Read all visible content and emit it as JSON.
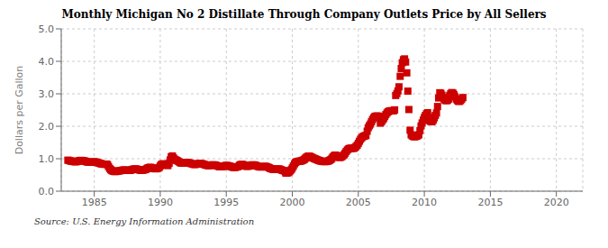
{
  "chart_data": {
    "type": "scatter",
    "title": "Monthly Michigan No 2 Distillate Through Company Outlets Price by All Sellers",
    "ylabel": "Dollars per Gallon",
    "annotations": [
      "Source: U.S. Energy Information Administration"
    ],
    "color": "#cc0000",
    "marker": "square",
    "grid": true,
    "xlim": [
      1982.5,
      2022
    ],
    "ylim": [
      0.0,
      5.0
    ],
    "xticks": [
      1985,
      1990,
      1995,
      2000,
      2005,
      2010,
      2015,
      2020
    ],
    "yticks": [
      {
        "value": 0.0,
        "label": "0.0"
      },
      {
        "value": 1.0,
        "label": "1.0"
      },
      {
        "value": 2.0,
        "label": "2.0"
      },
      {
        "value": 3.0,
        "label": "3.0"
      },
      {
        "value": 4.0,
        "label": "4.0"
      },
      {
        "value": 5.0,
        "label": "5.0"
      }
    ],
    "x": [
      1983.0,
      1983.08,
      1983.17,
      1983.25,
      1983.33,
      1983.42,
      1983.5,
      1983.58,
      1983.67,
      1983.75,
      1983.83,
      1983.92,
      1984.0,
      1984.08,
      1984.17,
      1984.25,
      1984.33,
      1984.42,
      1984.5,
      1984.58,
      1984.67,
      1984.75,
      1984.83,
      1984.92,
      1985.0,
      1985.08,
      1985.17,
      1985.25,
      1985.33,
      1985.42,
      1985.5,
      1985.58,
      1985.67,
      1985.75,
      1985.83,
      1985.92,
      1986.0,
      1986.08,
      1986.17,
      1986.25,
      1986.33,
      1986.42,
      1986.5,
      1986.58,
      1986.67,
      1986.75,
      1986.83,
      1986.92,
      1987.0,
      1987.08,
      1987.17,
      1987.25,
      1987.33,
      1987.42,
      1987.5,
      1987.58,
      1987.67,
      1987.75,
      1987.83,
      1987.92,
      1988.0,
      1988.08,
      1988.17,
      1988.25,
      1988.33,
      1988.42,
      1988.5,
      1988.58,
      1988.67,
      1988.75,
      1988.83,
      1988.92,
      1989.0,
      1989.08,
      1989.17,
      1989.25,
      1989.33,
      1989.42,
      1989.5,
      1989.58,
      1989.67,
      1989.75,
      1989.83,
      1989.92,
      1990.0,
      1990.08,
      1990.17,
      1990.25,
      1990.33,
      1990.42,
      1990.5,
      1990.58,
      1990.67,
      1990.75,
      1990.83,
      1990.92,
      1991.0,
      1991.08,
      1991.17,
      1991.25,
      1991.33,
      1991.42,
      1991.5,
      1991.58,
      1991.67,
      1991.75,
      1991.83,
      1991.92,
      1992.0,
      1992.08,
      1992.17,
      1992.25,
      1992.33,
      1992.42,
      1992.5,
      1992.58,
      1992.67,
      1992.75,
      1992.83,
      1992.92,
      1993.0,
      1993.08,
      1993.17,
      1993.25,
      1993.33,
      1993.42,
      1993.5,
      1993.58,
      1993.67,
      1993.75,
      1993.83,
      1993.92,
      1994.0,
      1994.08,
      1994.17,
      1994.25,
      1994.33,
      1994.42,
      1994.5,
      1994.58,
      1994.67,
      1994.75,
      1994.83,
      1994.92,
      1995.0,
      1995.08,
      1995.17,
      1995.25,
      1995.33,
      1995.42,
      1995.5,
      1995.58,
      1995.67,
      1995.75,
      1995.83,
      1995.92,
      1996.0,
      1996.08,
      1996.17,
      1996.25,
      1996.33,
      1996.42,
      1996.5,
      1996.58,
      1996.67,
      1996.75,
      1996.83,
      1996.92,
      1997.0,
      1997.08,
      1997.17,
      1997.25,
      1997.33,
      1997.42,
      1997.5,
      1997.58,
      1997.67,
      1997.75,
      1997.83,
      1997.92,
      1998.0,
      1998.08,
      1998.17,
      1998.25,
      1998.33,
      1998.42,
      1998.5,
      1998.58,
      1998.67,
      1998.75,
      1998.83,
      1998.92,
      1999.0,
      1999.08,
      1999.17,
      1999.25,
      1999.33,
      1999.42,
      1999.5,
      1999.58,
      1999.67,
      1999.75,
      1999.83,
      1999.92,
      2000.0,
      2000.08,
      2000.17,
      2000.25,
      2000.33,
      2000.42,
      2000.5,
      2000.58,
      2000.67,
      2000.75,
      2000.83,
      2000.92,
      2001.0,
      2001.08,
      2001.17,
      2001.25,
      2001.33,
      2001.42,
      2001.5,
      2001.58,
      2001.67,
      2001.75,
      2001.83,
      2001.92,
      2002.0,
      2002.08,
      2002.17,
      2002.25,
      2002.33,
      2002.42,
      2002.5,
      2002.58,
      2002.67,
      2002.75,
      2002.83,
      2002.92,
      2003.0,
      2003.08,
      2003.17,
      2003.25,
      2003.33,
      2003.42,
      2003.5,
      2003.58,
      2003.67,
      2003.75,
      2003.83,
      2003.92,
      2004.0,
      2004.08,
      2004.17,
      2004.25,
      2004.33,
      2004.42,
      2004.5,
      2004.58,
      2004.67,
      2004.75,
      2004.83,
      2004.92,
      2005.0,
      2005.08,
      2005.17,
      2005.25,
      2005.33,
      2005.42,
      2005.5,
      2005.58,
      2005.67,
      2005.75,
      2005.83,
      2005.92,
      2006.0,
      2006.08,
      2006.17,
      2006.25,
      2006.33,
      2006.42,
      2006.5,
      2006.58,
      2006.67,
      2006.75,
      2006.83,
      2006.92,
      2007.0,
      2007.08,
      2007.17,
      2007.25,
      2007.33,
      2007.42,
      2007.5,
      2007.58,
      2007.67,
      2007.75,
      2007.83,
      2007.92,
      2008.0,
      2008.08,
      2008.17,
      2008.25,
      2008.33,
      2008.42,
      2008.5,
      2008.58,
      2008.67,
      2008.75,
      2008.83,
      2008.92,
      2009.0,
      2009.08,
      2009.17,
      2009.25,
      2009.33,
      2009.42,
      2009.5,
      2009.58,
      2009.67,
      2009.75,
      2009.83,
      2009.92,
      2010.0,
      2010.08,
      2010.17,
      2010.25,
      2010.33,
      2010.42,
      2010.5,
      2010.58,
      2010.67,
      2010.75,
      2010.83,
      2010.92,
      2011.0,
      2011.08,
      2011.17,
      2011.25,
      2011.33,
      2011.42,
      2011.5,
      2011.58,
      2011.67,
      2011.75,
      2011.83,
      2011.92,
      2012.0,
      2012.08,
      2012.17,
      2012.25,
      2012.33,
      2012.42,
      2012.5,
      2012.58,
      2012.67,
      2012.75,
      2012.83,
      2012.92
    ],
    "values": [
      0.955,
      0.948,
      0.934,
      0.928,
      0.92,
      0.915,
      0.91,
      0.905,
      0.912,
      0.92,
      0.935,
      0.945,
      0.95,
      0.945,
      0.94,
      0.932,
      0.92,
      0.908,
      0.9,
      0.895,
      0.89,
      0.888,
      0.892,
      0.9,
      0.905,
      0.9,
      0.893,
      0.882,
      0.87,
      0.858,
      0.848,
      0.84,
      0.832,
      0.828,
      0.83,
      0.835,
      0.82,
      0.76,
      0.7,
      0.66,
      0.635,
      0.618,
      0.608,
      0.605,
      0.608,
      0.615,
      0.622,
      0.628,
      0.635,
      0.642,
      0.648,
      0.652,
      0.65,
      0.645,
      0.64,
      0.638,
      0.64,
      0.648,
      0.66,
      0.672,
      0.68,
      0.685,
      0.682,
      0.675,
      0.665,
      0.655,
      0.648,
      0.645,
      0.648,
      0.655,
      0.665,
      0.675,
      0.7,
      0.718,
      0.73,
      0.735,
      0.725,
      0.712,
      0.7,
      0.692,
      0.69,
      0.695,
      0.71,
      0.73,
      0.78,
      0.82,
      0.84,
      0.842,
      0.832,
      0.818,
      0.8,
      0.79,
      0.858,
      0.962,
      1.058,
      1.085,
      1.025,
      0.982,
      0.962,
      0.948,
      0.928,
      0.905,
      0.882,
      0.868,
      0.862,
      0.865,
      0.875,
      0.885,
      0.888,
      0.882,
      0.875,
      0.865,
      0.852,
      0.84,
      0.83,
      0.822,
      0.825,
      0.832,
      0.842,
      0.852,
      0.858,
      0.852,
      0.845,
      0.835,
      0.822,
      0.81,
      0.8,
      0.792,
      0.79,
      0.792,
      0.8,
      0.808,
      0.812,
      0.81,
      0.802,
      0.792,
      0.778,
      0.765,
      0.755,
      0.75,
      0.752,
      0.76,
      0.772,
      0.785,
      0.792,
      0.79,
      0.782,
      0.772,
      0.76,
      0.748,
      0.738,
      0.732,
      0.735,
      0.742,
      0.752,
      0.762,
      0.798,
      0.815,
      0.825,
      0.822,
      0.805,
      0.788,
      0.772,
      0.765,
      0.77,
      0.778,
      0.792,
      0.805,
      0.812,
      0.81,
      0.802,
      0.79,
      0.775,
      0.762,
      0.752,
      0.745,
      0.745,
      0.75,
      0.758,
      0.765,
      0.762,
      0.752,
      0.738,
      0.72,
      0.702,
      0.69,
      0.68,
      0.672,
      0.67,
      0.672,
      0.68,
      0.685,
      0.682,
      0.672,
      0.658,
      0.642,
      0.632,
      0.625,
      0.562,
      0.555,
      0.568,
      0.592,
      0.625,
      0.66,
      0.715,
      0.775,
      0.842,
      0.885,
      0.908,
      0.918,
      0.922,
      0.925,
      0.93,
      0.942,
      0.96,
      0.982,
      1.015,
      1.048,
      1.07,
      1.08,
      1.072,
      1.055,
      1.038,
      1.02,
      1.005,
      0.992,
      0.978,
      0.962,
      0.948,
      0.938,
      0.928,
      0.92,
      0.915,
      0.912,
      0.912,
      0.915,
      0.922,
      0.935,
      0.952,
      0.972,
      1.012,
      1.058,
      1.092,
      1.112,
      1.095,
      1.072,
      1.052,
      1.038,
      1.045,
      1.065,
      1.092,
      1.122,
      1.168,
      1.222,
      1.268,
      1.3,
      1.315,
      1.322,
      1.322,
      1.318,
      1.325,
      1.345,
      1.378,
      1.418,
      1.475,
      1.538,
      1.598,
      1.645,
      1.675,
      1.695,
      1.708,
      1.715,
      1.848,
      1.955,
      2.015,
      2.068,
      2.142,
      2.208,
      2.262,
      2.298,
      2.312,
      2.315,
      2.312,
      2.302,
      2.095,
      2.138,
      2.188,
      2.238,
      2.298,
      2.358,
      2.408,
      2.445,
      2.465,
      2.475,
      2.478,
      2.475,
      2.478,
      2.505,
      2.948,
      3.008,
      3.088,
      3.215,
      3.538,
      3.778,
      3.958,
      4.048,
      4.075,
      3.978,
      3.645,
      3.082,
      2.515,
      1.878,
      1.738,
      1.705,
      1.685,
      1.678,
      1.682,
      1.695,
      1.715,
      1.738,
      1.865,
      2.008,
      2.102,
      2.188,
      2.268,
      2.332,
      2.385,
      2.418,
      2.268,
      2.168,
      2.138,
      2.138,
      2.188,
      2.258,
      2.332,
      2.408,
      2.608,
      2.872,
      3.032,
      3.018,
      2.958,
      2.885,
      2.838,
      2.798,
      2.788,
      2.798,
      2.838,
      2.948,
      3.002,
      3.038,
      3.018,
      2.968,
      2.902,
      2.838,
      2.795,
      2.768,
      2.768,
      2.795,
      2.838,
      2.885
    ]
  }
}
